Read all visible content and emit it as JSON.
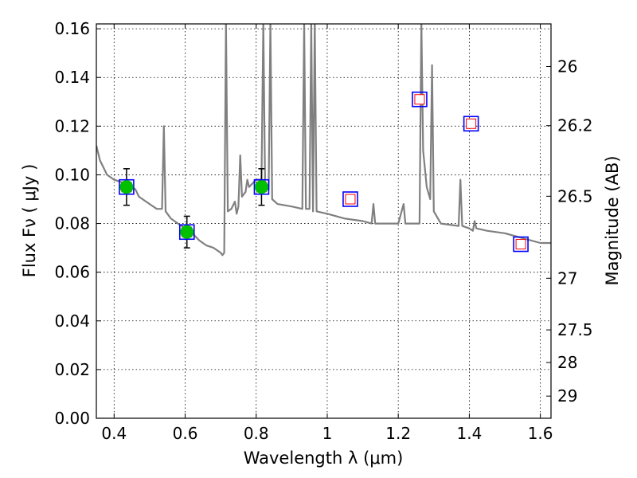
{
  "chart_data": {
    "type": "line",
    "xlabel": "Wavelength  λ (μm)",
    "ylabel": "Flux  Fν  ( μJy )",
    "ylabel_right": "Magnitude (AB)",
    "xlim": [
      0.35,
      1.63
    ],
    "ylim": [
      0.0,
      0.162
    ],
    "grid": true,
    "x_ticks": [
      0.4,
      0.6,
      0.8,
      1.0,
      1.2,
      1.4,
      1.6
    ],
    "x_tick_labels": [
      "0.4",
      "0.6",
      "0.8",
      "1",
      "1.2",
      "1.4",
      "1.6"
    ],
    "y_ticks": [
      0.0,
      0.02,
      0.04,
      0.06,
      0.08,
      0.1,
      0.12,
      0.14,
      0.16
    ],
    "y_tick_labels": [
      "0.00",
      "0.02",
      "0.04",
      "0.06",
      "0.08",
      "0.10",
      "0.12",
      "0.14",
      "0.16"
    ],
    "right_ticks": [
      {
        "label": "26",
        "flux": 0.1445
      },
      {
        "label": "26.2",
        "flux": 0.1202
      },
      {
        "label": "26.5",
        "flux": 0.0912
      },
      {
        "label": "27",
        "flux": 0.0575
      },
      {
        "label": "27.5",
        "flux": 0.0363
      },
      {
        "label": "28",
        "flux": 0.0229
      },
      {
        "label": "29",
        "flux": 0.0091
      }
    ],
    "colors": {
      "spectrum": "#808080",
      "observed": "#00c000",
      "square": "#0000ff",
      "model": "#ff0000",
      "errorbar": "#000000"
    },
    "spectrum": [
      [
        0.35,
        0.112
      ],
      [
        0.36,
        0.106
      ],
      [
        0.38,
        0.1
      ],
      [
        0.4,
        0.098
      ],
      [
        0.42,
        0.097
      ],
      [
        0.44,
        0.096
      ],
      [
        0.46,
        0.094
      ],
      [
        0.47,
        0.091
      ],
      [
        0.48,
        0.09
      ],
      [
        0.49,
        0.089
      ],
      [
        0.5,
        0.088
      ],
      [
        0.52,
        0.086
      ],
      [
        0.535,
        0.086
      ],
      [
        0.54,
        0.12
      ],
      [
        0.545,
        0.085
      ],
      [
        0.56,
        0.082
      ],
      [
        0.58,
        0.08
      ],
      [
        0.6,
        0.078
      ],
      [
        0.62,
        0.076
      ],
      [
        0.64,
        0.073
      ],
      [
        0.66,
        0.071
      ],
      [
        0.68,
        0.07
      ],
      [
        0.7,
        0.068
      ],
      [
        0.705,
        0.067
      ],
      [
        0.71,
        0.068
      ],
      [
        0.715,
        0.1625
      ],
      [
        0.72,
        0.085
      ],
      [
        0.73,
        0.086
      ],
      [
        0.74,
        0.089
      ],
      [
        0.745,
        0.084
      ],
      [
        0.75,
        0.087
      ],
      [
        0.755,
        0.108
      ],
      [
        0.76,
        0.091
      ],
      [
        0.77,
        0.093
      ],
      [
        0.775,
        0.098
      ],
      [
        0.78,
        0.095
      ],
      [
        0.8,
        0.098
      ],
      [
        0.815,
        0.098
      ],
      [
        0.82,
        0.1625
      ],
      [
        0.825,
        0.096
      ],
      [
        0.835,
        0.094
      ],
      [
        0.84,
        0.1625
      ],
      [
        0.845,
        0.09
      ],
      [
        0.86,
        0.088
      ],
      [
        0.9,
        0.087
      ],
      [
        0.93,
        0.086
      ],
      [
        0.935,
        0.1625
      ],
      [
        0.94,
        0.086
      ],
      [
        0.95,
        0.086
      ],
      [
        0.955,
        0.1625
      ],
      [
        0.96,
        0.085
      ],
      [
        0.965,
        0.1625
      ],
      [
        0.97,
        0.085
      ],
      [
        1.0,
        0.084
      ],
      [
        1.05,
        0.082
      ],
      [
        1.1,
        0.081
      ],
      [
        1.125,
        0.08
      ],
      [
        1.13,
        0.088
      ],
      [
        1.135,
        0.08
      ],
      [
        1.2,
        0.08
      ],
      [
        1.215,
        0.088
      ],
      [
        1.22,
        0.08
      ],
      [
        1.26,
        0.08
      ],
      [
        1.265,
        0.1625
      ],
      [
        1.27,
        0.11
      ],
      [
        1.28,
        0.095
      ],
      [
        1.29,
        0.09
      ],
      [
        1.295,
        0.145
      ],
      [
        1.3,
        0.085
      ],
      [
        1.32,
        0.08
      ],
      [
        1.37,
        0.079
      ],
      [
        1.375,
        0.098
      ],
      [
        1.38,
        0.079
      ],
      [
        1.4,
        0.078
      ],
      [
        1.41,
        0.077
      ],
      [
        1.415,
        0.081
      ],
      [
        1.42,
        0.078
      ],
      [
        1.45,
        0.077
      ],
      [
        1.5,
        0.076
      ],
      [
        1.55,
        0.074
      ],
      [
        1.6,
        0.072
      ],
      [
        1.63,
        0.072
      ]
    ],
    "observed": [
      {
        "x": 0.435,
        "y": 0.095,
        "yerr": 0.0075
      },
      {
        "x": 0.605,
        "y": 0.0765,
        "yerr": 0.0065
      },
      {
        "x": 0.815,
        "y": 0.095,
        "yerr": 0.0075
      }
    ],
    "model_points": [
      {
        "x": 0.435,
        "y": 0.095
      },
      {
        "x": 0.605,
        "y": 0.0765
      },
      {
        "x": 0.815,
        "y": 0.095
      },
      {
        "x": 1.065,
        "y": 0.09
      },
      {
        "x": 1.26,
        "y": 0.131
      },
      {
        "x": 1.405,
        "y": 0.121
      },
      {
        "x": 1.545,
        "y": 0.0715
      }
    ]
  }
}
